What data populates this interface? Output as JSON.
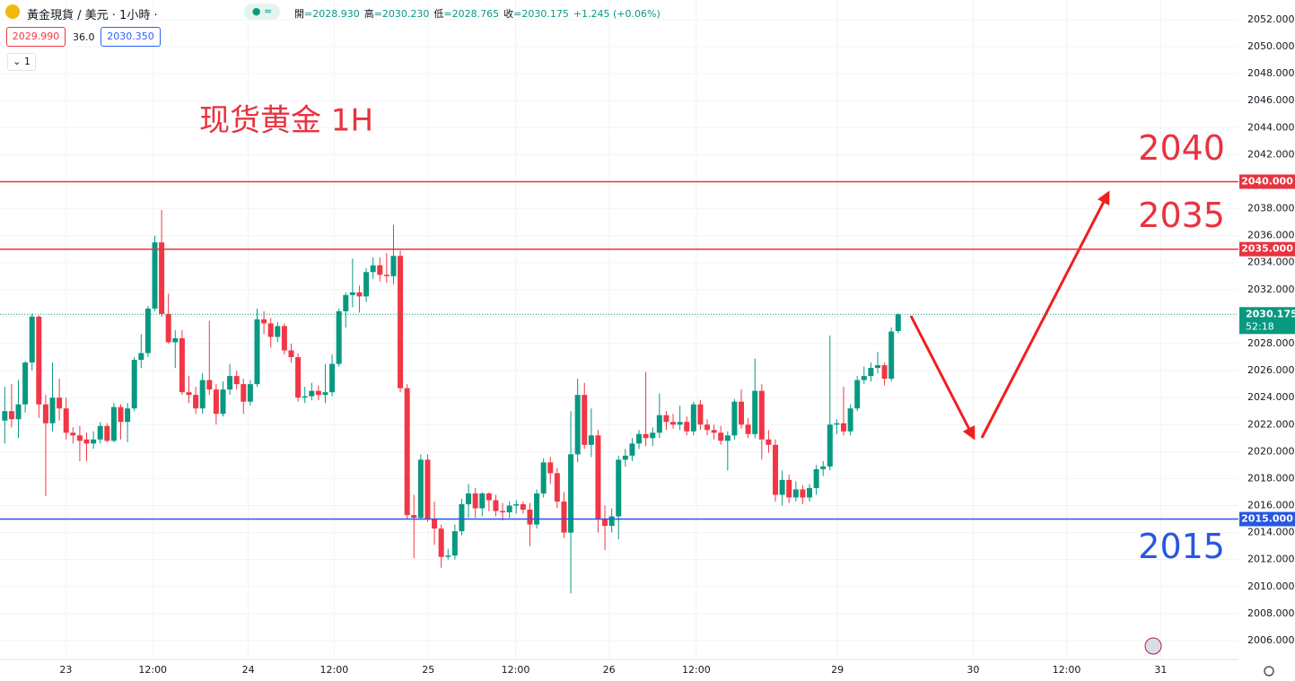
{
  "header": {
    "symbol": "黃金現貨 / 美元 · 1小時 ·",
    "ohlc": [
      {
        "name": "開",
        "value": "=2028.930"
      },
      {
        "name": "高",
        "value": "=2030.230"
      },
      {
        "name": "低",
        "value": "=2028.765"
      },
      {
        "name": "收",
        "value": "=2030.175"
      }
    ],
    "change": "+1.245 (+0.06%)",
    "bid": "2029.990",
    "spread": "36.0",
    "ask": "2030.350",
    "indicators": "1"
  },
  "chart_data": {
    "type": "candlestick",
    "title": "现货黄金 1H",
    "up_color": "#089981",
    "down_color": "#f23645",
    "x": [
      0,
      1,
      2,
      3,
      4,
      5,
      6,
      7,
      8,
      9,
      10,
      11,
      12,
      13,
      14,
      15,
      16,
      17,
      18,
      19,
      20,
      21,
      22,
      23,
      24,
      25,
      26,
      27,
      28,
      29,
      30,
      31,
      32,
      33,
      34,
      35,
      36,
      37,
      38,
      39,
      40,
      41,
      42,
      43,
      44,
      45,
      46,
      47,
      48,
      49,
      50,
      51,
      52,
      53,
      54,
      55,
      56,
      57,
      58,
      59,
      60,
      61,
      62,
      63,
      64,
      65,
      66,
      67,
      68,
      69,
      70,
      71,
      72,
      73,
      74,
      75,
      76,
      77,
      78,
      79,
      80,
      81,
      82,
      83,
      84,
      85,
      86,
      87,
      88,
      89,
      90,
      91,
      92,
      93,
      94,
      95,
      96,
      97,
      98,
      99,
      100,
      101,
      102,
      103,
      104,
      105,
      106,
      107,
      108,
      109,
      110,
      111,
      112,
      113,
      114,
      115,
      116,
      117,
      118,
      119,
      120,
      121,
      122,
      123,
      124,
      125,
      126,
      127,
      128,
      129,
      130,
      131
    ],
    "open": [
      2022.3,
      2023.0,
      2022.4,
      2023.5,
      2026.6,
      2030.0,
      2023.5,
      2022.1,
      2024.0,
      2023.2,
      2021.4,
      2021.2,
      2020.9,
      2020.6,
      2020.9,
      2021.9,
      2020.8,
      2023.3,
      2022.2,
      2023.2,
      2026.8,
      2027.3,
      2030.6,
      2035.5,
      2030.2,
      2028.1,
      2028.4,
      2024.4,
      2024.2,
      2023.2,
      2025.3,
      2024.6,
      2022.8,
      2024.6,
      2025.6,
      2025.0,
      2023.7,
      2025.0,
      2029.8,
      2029.5,
      2028.5,
      2029.3,
      2027.5,
      2027.0,
      2024.0,
      2024.1,
      2024.5,
      2024.2,
      2024.4,
      2026.5,
      2030.4,
      2031.6,
      2031.8,
      2031.5,
      2033.3,
      2033.8,
      2033.1,
      2033.0,
      2034.5,
      2024.7,
      2015.3,
      2015.1,
      2019.4,
      2015.0,
      2014.3,
      2012.2,
      2012.3,
      2014.1,
      2016.1,
      2016.9,
      2015.8,
      2016.9,
      2016.4,
      2015.6,
      2015.5,
      2016.0,
      2016.1,
      2015.7,
      2014.6,
      2016.9,
      2019.2,
      2018.4,
      2016.3,
      2014.0,
      2019.8,
      2024.2,
      2020.5,
      2021.2,
      2015.0,
      2014.5,
      2015.2,
      2019.4,
      2019.7,
      2020.6,
      2021.3,
      2021.0,
      2021.4,
      2022.7,
      2022.2,
      2022.0,
      2022.2,
      2021.5,
      2023.5,
      2022.0,
      2021.6,
      2021.4,
      2020.8,
      2021.2,
      2023.7,
      2022.0,
      2021.3,
      2024.5,
      2020.9,
      2020.5,
      2016.8,
      2017.9,
      2016.6,
      2017.2,
      2016.6,
      2017.3,
      2018.7,
      2018.9,
      2022.0,
      2022.1,
      2021.5,
      2023.2,
      2025.3,
      2025.6,
      2026.2,
      2026.4,
      2025.4,
      2028.93
    ],
    "high": [
      2024.8,
      2025.0,
      2025.3,
      2026.7,
      2030.2,
      2030.1,
      2024.2,
      2026.6,
      2025.4,
      2024.0,
      2021.8,
      2021.9,
      2021.4,
      2021.5,
      2022.2,
      2022.1,
      2023.6,
      2023.5,
      2023.6,
      2027.0,
      2028.7,
      2030.8,
      2036.0,
      2037.9,
      2031.7,
      2029.0,
      2029.0,
      2025.6,
      2024.8,
      2025.8,
      2029.7,
      2025.0,
      2025.2,
      2026.5,
      2026.0,
      2025.4,
      2025.3,
      2030.6,
      2030.4,
      2029.9,
      2029.6,
      2029.5,
      2028.0,
      2027.3,
      2024.8,
      2025.1,
      2024.9,
      2026.5,
      2027.2,
      2030.6,
      2031.8,
      2034.3,
      2032.3,
      2033.6,
      2034.4,
      2034.4,
      2034.7,
      2036.8,
      2034.9,
      2025.0,
      2016.8,
      2019.8,
      2019.8,
      2016.3,
      2014.6,
      2012.8,
      2014.6,
      2016.5,
      2017.6,
      2017.3,
      2017.0,
      2017.0,
      2016.8,
      2016.2,
      2016.3,
      2016.4,
      2016.3,
      2016.2,
      2017.2,
      2019.5,
      2019.6,
      2018.8,
      2017.0,
      2023.0,
      2025.4,
      2025.1,
      2023.2,
      2021.6,
      2016.0,
      2015.8,
      2019.7,
      2020.2,
      2021.0,
      2021.6,
      2025.9,
      2021.8,
      2024.3,
      2023.0,
      2022.8,
      2023.4,
      2022.6,
      2023.7,
      2023.8,
      2022.4,
      2022.0,
      2021.9,
      2021.5,
      2023.9,
      2024.6,
      2022.5,
      2026.9,
      2025.0,
      2021.6,
      2020.9,
      2018.6,
      2018.3,
      2017.8,
      2017.5,
      2017.6,
      2019.0,
      2019.3,
      2028.6,
      2022.4,
      2024.8,
      2023.5,
      2025.6,
      2026.3,
      2026.6,
      2027.4,
      2026.6,
      2029.2,
      2030.23
    ],
    "low": [
      2020.6,
      2021.8,
      2021.0,
      2022.9,
      2026.0,
      2022.5,
      2016.7,
      2021.5,
      2022.3,
      2020.9,
      2020.6,
      2019.3,
      2019.3,
      2020.2,
      2020.6,
      2020.7,
      2020.7,
      2020.9,
      2020.7,
      2023.0,
      2026.2,
      2027.0,
      2030.4,
      2030.0,
      2028.0,
      2026.2,
      2024.2,
      2023.6,
      2022.8,
      2022.8,
      2024.2,
      2022.0,
      2022.6,
      2024.2,
      2024.6,
      2022.8,
      2023.4,
      2024.8,
      2028.7,
      2027.7,
      2028.1,
      2027.2,
      2026.6,
      2023.7,
      2023.6,
      2023.8,
      2023.8,
      2023.6,
      2024.1,
      2026.3,
      2029.2,
      2030.7,
      2030.3,
      2031.1,
      2032.8,
      2032.6,
      2032.5,
      2032.4,
      2024.4,
      2015.0,
      2012.1,
      2015.0,
      2014.8,
      2013.1,
      2011.4,
      2012.0,
      2012.0,
      2013.8,
      2015.1,
      2015.1,
      2015.2,
      2015.6,
      2015.2,
      2014.9,
      2015.1,
      2015.4,
      2015.4,
      2013.0,
      2014.3,
      2016.6,
      2017.6,
      2015.8,
      2013.6,
      2009.5,
      2019.2,
      2020.2,
      2019.6,
      2014.0,
      2012.7,
      2014.0,
      2013.5,
      2018.9,
      2019.3,
      2020.2,
      2020.4,
      2020.4,
      2021.0,
      2021.6,
      2021.7,
      2021.6,
      2021.2,
      2021.2,
      2021.6,
      2021.2,
      2020.9,
      2020.5,
      2018.6,
      2020.9,
      2021.7,
      2021.0,
      2021.0,
      2019.4,
      2019.9,
      2016.3,
      2016.0,
      2016.2,
      2016.3,
      2016.1,
      2016.3,
      2016.8,
      2018.2,
      2018.6,
      2021.3,
      2021.2,
      2021.2,
      2023.0,
      2025.0,
      2025.2,
      2025.8,
      2024.9,
      2025.2,
      2028.765
    ],
    "close": [
      2023.0,
      2022.4,
      2023.5,
      2026.6,
      2030.0,
      2023.5,
      2022.1,
      2024.0,
      2023.2,
      2021.4,
      2021.2,
      2020.8,
      2020.6,
      2020.9,
      2021.9,
      2020.8,
      2023.3,
      2022.2,
      2023.2,
      2026.8,
      2027.3,
      2030.6,
      2035.5,
      2030.2,
      2028.1,
      2028.4,
      2024.4,
      2024.2,
      2023.2,
      2025.3,
      2024.6,
      2022.8,
      2024.6,
      2025.6,
      2025.0,
      2023.7,
      2025.0,
      2029.8,
      2029.5,
      2028.5,
      2029.3,
      2027.5,
      2027.0,
      2024.0,
      2024.1,
      2024.5,
      2024.2,
      2024.4,
      2026.5,
      2030.4,
      2031.6,
      2031.8,
      2031.5,
      2033.3,
      2033.8,
      2033.1,
      2033.0,
      2034.5,
      2024.7,
      2015.3,
      2015.1,
      2019.4,
      2015.0,
      2014.3,
      2012.2,
      2012.3,
      2014.1,
      2016.1,
      2016.9,
      2015.8,
      2016.9,
      2016.4,
      2015.6,
      2015.5,
      2016.0,
      2016.1,
      2015.7,
      2014.6,
      2016.9,
      2019.2,
      2018.4,
      2016.3,
      2014.0,
      2019.8,
      2024.2,
      2020.5,
      2021.2,
      2015.0,
      2014.5,
      2015.2,
      2019.4,
      2019.7,
      2020.6,
      2021.3,
      2021.0,
      2021.4,
      2022.7,
      2022.2,
      2022.0,
      2022.2,
      2021.5,
      2023.5,
      2022.0,
      2021.6,
      2021.4,
      2020.8,
      2021.2,
      2023.7,
      2022.0,
      2021.3,
      2024.5,
      2020.9,
      2020.5,
      2016.8,
      2017.9,
      2016.6,
      2017.2,
      2016.6,
      2017.3,
      2018.7,
      2018.9,
      2022.0,
      2022.1,
      2021.5,
      2023.2,
      2025.3,
      2025.6,
      2026.2,
      2026.4,
      2025.4,
      2028.9,
      2030.175
    ],
    "xlim": [
      -0.7,
      180.9
    ],
    "xticks": [
      {
        "value": 8.95,
        "label": "23"
      },
      {
        "value": 21.7,
        "label": "12:00"
      },
      {
        "value": 35.7,
        "label": "24"
      },
      {
        "value": 48.3,
        "label": "12:00"
      },
      {
        "value": 62.1,
        "label": "25"
      },
      {
        "value": 74.9,
        "label": "12:00"
      },
      {
        "value": 88.6,
        "label": "26"
      },
      {
        "value": 101.4,
        "label": "12:00"
      },
      {
        "value": 122.1,
        "label": "29"
      },
      {
        "value": 142,
        "label": "30"
      },
      {
        "value": 155.7,
        "label": "12:00"
      },
      {
        "value": 169.5,
        "label": "31"
      }
    ],
    "ylim": [
      2004.6,
      2053.46
    ],
    "yticks": [
      {
        "value": 2006,
        "label": "2006.000"
      },
      {
        "value": 2008,
        "label": "2008.000"
      },
      {
        "value": 2010,
        "label": "2010.000"
      },
      {
        "value": 2012,
        "label": "2012.000"
      },
      {
        "value": 2014,
        "label": "2014.000"
      },
      {
        "value": 2016,
        "label": "2016.000"
      },
      {
        "value": 2018,
        "label": "2018.000"
      },
      {
        "value": 2020,
        "label": "2020.000"
      },
      {
        "value": 2022,
        "label": "2022.000"
      },
      {
        "value": 2024,
        "label": "2024.000"
      },
      {
        "value": 2026,
        "label": "2026.000"
      },
      {
        "value": 2028,
        "label": "2028.000"
      },
      {
        "value": 2030,
        "label": "2030.000"
      },
      {
        "value": 2032,
        "label": "2032.000"
      },
      {
        "value": 2034,
        "label": "2034.000"
      },
      {
        "value": 2036,
        "label": "2036.000"
      },
      {
        "value": 2038,
        "label": "2038.000"
      },
      {
        "value": 2040,
        "label": "2040.000"
      },
      {
        "value": 2042,
        "label": "2042.000"
      },
      {
        "value": 2044,
        "label": "2044.000"
      },
      {
        "value": 2046,
        "label": "2046.000"
      },
      {
        "value": 2048,
        "label": "2048.000"
      },
      {
        "value": 2050,
        "label": "2050.000"
      },
      {
        "value": 2052,
        "label": "2052.000"
      }
    ],
    "grid": true,
    "hlines": [
      {
        "value": 2040,
        "label": "2040.000",
        "note": "2040",
        "note_position": "above",
        "color": "#e8333f"
      },
      {
        "value": 2035,
        "label": "2035.000",
        "note": "2035",
        "note_position": "above",
        "color": "#e8333f"
      },
      {
        "value": 2015,
        "label": "2015.000",
        "note": "2015",
        "note_position": "below",
        "color": "#2857e0"
      }
    ],
    "last_price": {
      "value": 2030.175,
      "countdown": "52:18",
      "color": "#089981"
    }
  }
}
